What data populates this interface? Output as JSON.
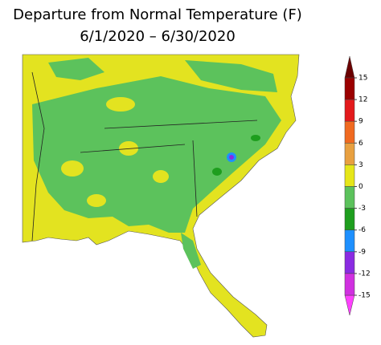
{
  "title": [
    "Departure from Normal Temperature (F)",
    "6/1/2020 – 6/30/2020"
  ],
  "legend": {
    "ticks": [
      15,
      12,
      9,
      6,
      3,
      0,
      -3,
      -6,
      -9,
      -12,
      -15
    ],
    "colors": [
      "#9b0000",
      "#e31a1c",
      "#f06a20",
      "#e8a040",
      "#e6e619",
      "#5cc25c",
      "#1e9e1e",
      "#1e90ff",
      "#8a2be2",
      "#d030e0"
    ],
    "over_color": "#6b0000",
    "under_color": "#ff40ff"
  }
}
